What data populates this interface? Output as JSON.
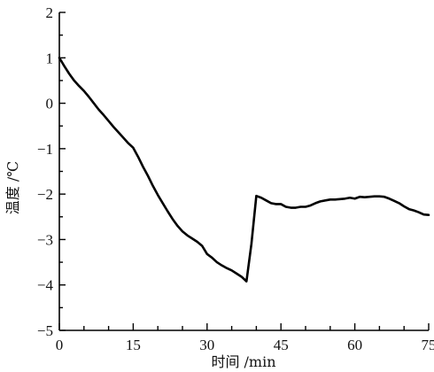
{
  "chart_data": {
    "type": "line",
    "xlabel": "时间 /min",
    "ylabel": "温度 /℃",
    "xlim": [
      0,
      75
    ],
    "ylim": [
      -5,
      2
    ],
    "x_ticks": [
      0,
      15,
      30,
      45,
      60,
      75
    ],
    "x_tick_labels": [
      "0",
      "15",
      "30",
      "45",
      "60",
      "75"
    ],
    "x_minor_step": 5,
    "y_ticks": [
      2,
      1,
      0,
      -1,
      -2,
      -3,
      -4,
      -5
    ],
    "y_tick_labels": [
      "2",
      "1",
      "0",
      "−1",
      "−2",
      "−3",
      "−4",
      "−5"
    ],
    "y_minor_step": 0.5,
    "grid": false,
    "line_color": "#000000",
    "series": [
      {
        "x": [
          0,
          1,
          2,
          3,
          4,
          5,
          6,
          7,
          8,
          9,
          10,
          11,
          12,
          13,
          14,
          15,
          16,
          17,
          18,
          19,
          20,
          21,
          22,
          23,
          24,
          25,
          26,
          27,
          28,
          29,
          30,
          31,
          32,
          33,
          34,
          35,
          36,
          37,
          38,
          39,
          40,
          41,
          42,
          43,
          44,
          45,
          46,
          47,
          48,
          49,
          50,
          51,
          52,
          53,
          54,
          55,
          56,
          57,
          58,
          59,
          60,
          61,
          62,
          63,
          64,
          65,
          66,
          67,
          68,
          69,
          70,
          71,
          72,
          73,
          74,
          75
        ],
        "y": [
          1.0,
          0.82,
          0.65,
          0.5,
          0.38,
          0.27,
          0.14,
          0.0,
          -0.14,
          -0.26,
          -0.39,
          -0.52,
          -0.64,
          -0.76,
          -0.88,
          -0.98,
          -1.18,
          -1.4,
          -1.6,
          -1.82,
          -2.02,
          -2.2,
          -2.38,
          -2.55,
          -2.7,
          -2.82,
          -2.91,
          -2.98,
          -3.05,
          -3.14,
          -3.32,
          -3.4,
          -3.5,
          -3.57,
          -3.63,
          -3.68,
          -3.75,
          -3.82,
          -3.92,
          -3.1,
          -2.04,
          -2.08,
          -2.14,
          -2.2,
          -2.22,
          -2.22,
          -2.28,
          -2.3,
          -2.3,
          -2.28,
          -2.28,
          -2.25,
          -2.2,
          -2.16,
          -2.14,
          -2.12,
          -2.12,
          -2.11,
          -2.1,
          -2.08,
          -2.1,
          -2.06,
          -2.07,
          -2.06,
          -2.05,
          -2.05,
          -2.06,
          -2.1,
          -2.15,
          -2.2,
          -2.27,
          -2.33,
          -2.36,
          -2.4,
          -2.45,
          -2.46
        ]
      }
    ]
  }
}
